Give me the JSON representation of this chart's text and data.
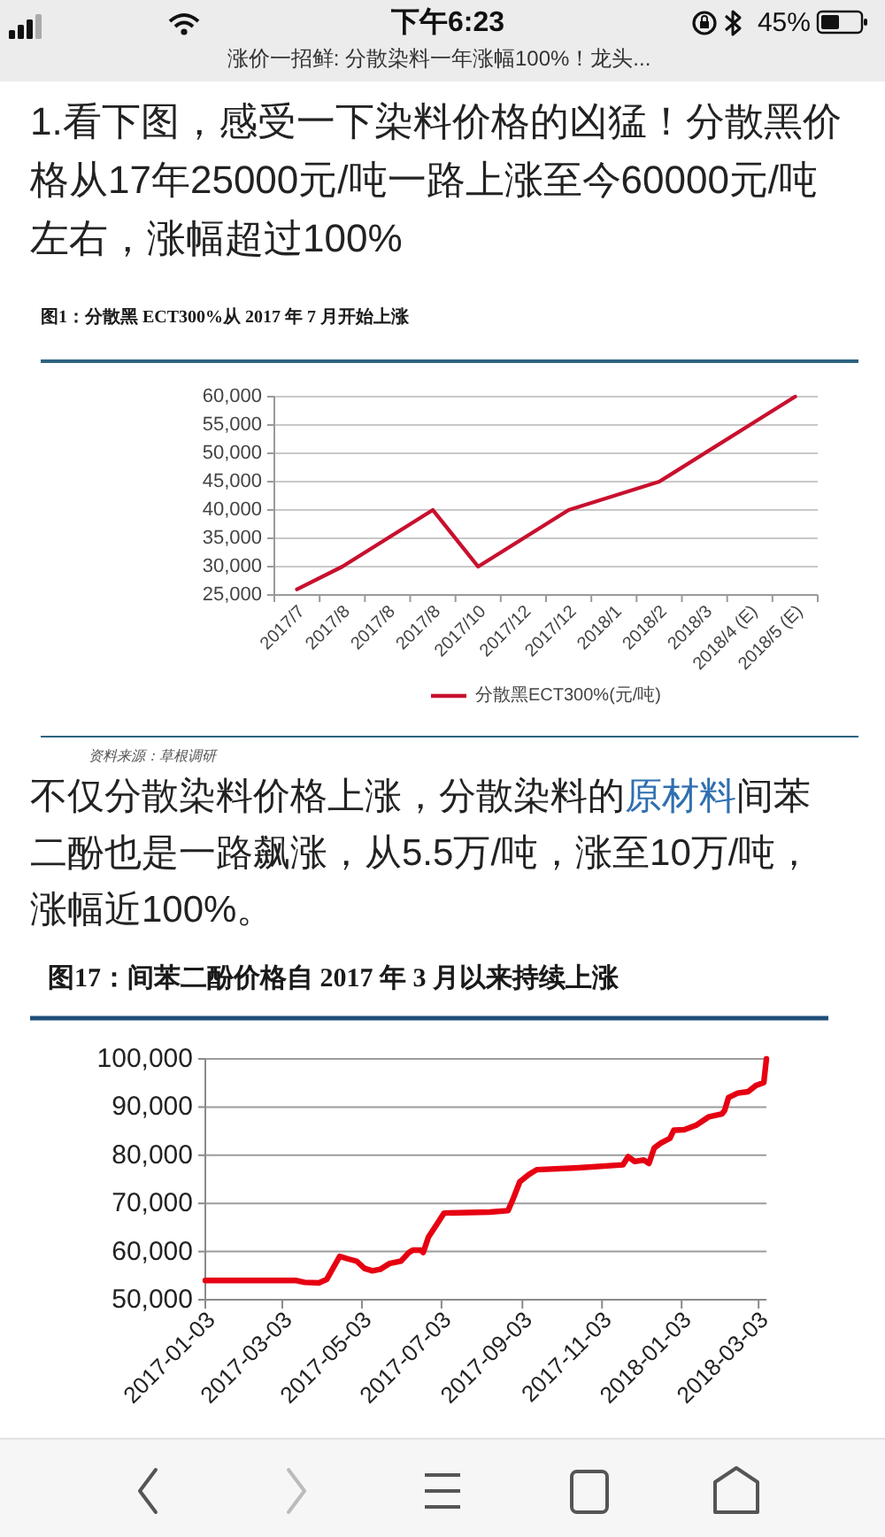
{
  "chart_data": [
    {
      "type": "other",
      "title": "涨价一招鲜: 分散染料一年涨幅100%！龙头...",
      "annotations": [
        "下午6:23",
        "45%",
        "1.看下图，感受一下染料价格的凶猛！分散黑价格从17年25000元/吨一路上涨至今60000元/吨左右，涨幅超过100%"
      ]
    },
    {
      "type": "line",
      "title": "图1：分散黑 ECT300%从 2017 年 7 月开始上涨",
      "categories": [
        "2017/7",
        "2017/8",
        "2017/8",
        "2017/8",
        "2017/10",
        "2017/12",
        "2017/12",
        "2018/1",
        "2018/2",
        "2018/3",
        "2018/4 (E)",
        "2018/5 (E)"
      ],
      "series": [
        {
          "name": "分散黑ECT300%(元/吨)",
          "color": "#c8102e",
          "values": [
            26000,
            30000,
            35000,
            40000,
            30000,
            35000,
            40000,
            42500,
            45000,
            50000,
            55000,
            60000
          ]
        }
      ],
      "ylim": [
        25000,
        60000
      ],
      "yticks": [
        {
          "value": 25000,
          "label": "25,000"
        },
        {
          "value": 30000,
          "label": "30,000"
        },
        {
          "value": 35000,
          "label": "35,000"
        },
        {
          "value": 40000,
          "label": "40,000"
        },
        {
          "value": 45000,
          "label": "45,000"
        },
        {
          "value": 50000,
          "label": "50,000"
        },
        {
          "value": 55000,
          "label": "55,000"
        },
        {
          "value": 60000,
          "label": "60,000"
        }
      ],
      "grid": "y",
      "legend": "bottom",
      "annotations": [
        "资料来源：草根调研"
      ]
    },
    {
      "type": "other",
      "annotations": [
        "不仅分散染料价格上涨，分散染料的",
        "原材料",
        "间苯",
        "二酚也是一路飙涨，从5.5万/吨，涨至10万/吨，",
        "涨幅近100%。"
      ]
    },
    {
      "type": "line",
      "title": "图17：间苯二酚价格自 2017 年 3 月以来持续上涨",
      "x": [
        "2017-01-03",
        "2017-03-13",
        "2017-03-20",
        "2017-03-31",
        "2017-04-06",
        "2017-04-16",
        "2017-04-22",
        "2017-04-29",
        "2017-05-05",
        "2017-05-11",
        "2017-05-17",
        "2017-05-24",
        "2017-06-02",
        "2017-06-08",
        "2017-06-11",
        "2017-06-17",
        "2017-06-19",
        "2017-06-23",
        "2017-06-29",
        "2017-07-05",
        "2017-08-09",
        "2017-08-23",
        "2017-08-27",
        "2017-09-01",
        "2017-09-08",
        "2017-09-14",
        "2017-10-16",
        "2017-11-19",
        "2017-11-23",
        "2017-11-28",
        "2017-12-05",
        "2017-12-09",
        "2017-12-13",
        "2017-12-18",
        "2017-12-25",
        "2017-12-28",
        "2018-01-05",
        "2018-01-14",
        "2018-01-24",
        "2018-02-03",
        "2018-02-05",
        "2018-02-08",
        "2018-02-15",
        "2018-02-23",
        "2018-03-01",
        "2018-03-07",
        "2018-03-09"
      ],
      "series": [
        {
          "color": "#e60012",
          "values": [
            54000,
            54000,
            53600,
            53500,
            54200,
            59000,
            58500,
            58000,
            56500,
            56000,
            56300,
            57500,
            58000,
            59800,
            60300,
            60300,
            59800,
            63000,
            65500,
            68000,
            68200,
            68500,
            71000,
            74500,
            76000,
            77000,
            77400,
            78000,
            79700,
            78700,
            79000,
            78300,
            81500,
            82500,
            83500,
            85200,
            85300,
            86200,
            88000,
            88600,
            89300,
            92000,
            92900,
            93200,
            94500,
            95100,
            100000
          ]
        }
      ],
      "xlim": [
        "2017-01-03",
        "2018-03-09"
      ],
      "xticks": [
        "2017-01-03",
        "2017-03-03",
        "2017-05-03",
        "2017-07-03",
        "2017-09-03",
        "2017-11-03",
        "2018-01-03",
        "2018-03-03"
      ],
      "ylim": [
        50000,
        100000
      ],
      "yticks": [
        {
          "value": 50000,
          "label": "50,000"
        },
        {
          "value": 60000,
          "label": "60,000"
        },
        {
          "value": 70000,
          "label": "70,000"
        },
        {
          "value": 80000,
          "label": "80,000"
        },
        {
          "value": 90000,
          "label": "90,000"
        },
        {
          "value": 100000,
          "label": "100,000"
        }
      ],
      "grid": "y"
    }
  ]
}
